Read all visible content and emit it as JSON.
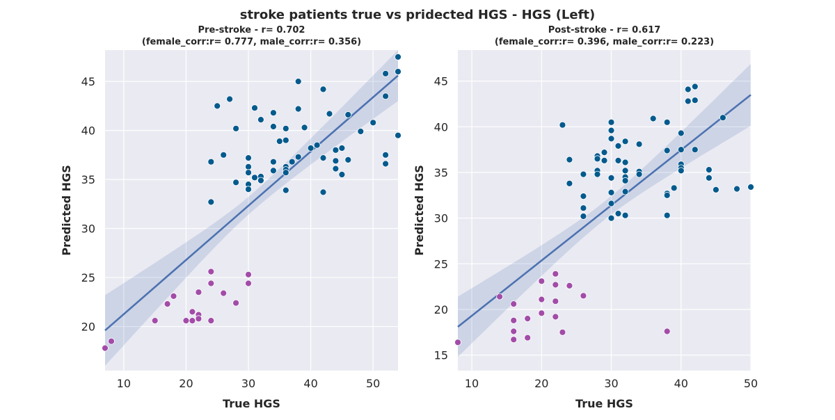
{
  "figure": {
    "suptitle": "stroke patients true vs pridected HGS - HGS (Left)"
  },
  "colors": {
    "background": "#eaeaf2",
    "grid": "#ffffff",
    "male": "#045a8d",
    "female": "#a24ca8",
    "regression_line": "#4c72b0",
    "ci_band": "#4c72b0"
  },
  "chart_data": [
    {
      "type": "scatter",
      "title_line1": "Pre-stroke - r= 0.702",
      "title_line2": "(female_corr:r= 0.777, male_corr:r= 0.356)",
      "xlabel": "True HGS",
      "ylabel": "Predicted HGS",
      "xlim": [
        7,
        54
      ],
      "ylim": [
        15.5,
        48.2
      ],
      "xticks": [
        10,
        20,
        30,
        40,
        50
      ],
      "yticks": [
        20,
        25,
        30,
        35,
        40,
        45
      ],
      "grid": true,
      "regression": {
        "x": [
          7,
          54
        ],
        "y": [
          19.6,
          45.6
        ],
        "ci_half_width_ends": [
          3.6,
          2.6
        ],
        "ci_half_width_center": 0.9
      },
      "series": [
        {
          "group": "male",
          "points": [
            [
              24,
              32.7
            ],
            [
              24,
              36.8
            ],
            [
              25,
              42.5
            ],
            [
              26,
              37.5
            ],
            [
              27,
              43.2
            ],
            [
              28,
              40.2
            ],
            [
              28,
              34.7
            ],
            [
              30,
              37.2
            ],
            [
              30,
              36.3
            ],
            [
              30,
              35.7
            ],
            [
              30,
              34.5
            ],
            [
              30,
              34.0
            ],
            [
              31,
              42.3
            ],
            [
              31,
              35.2
            ],
            [
              32,
              41.1
            ],
            [
              32,
              35.3
            ],
            [
              32,
              34.9
            ],
            [
              34,
              41.8
            ],
            [
              34,
              40.4
            ],
            [
              34,
              36.8
            ],
            [
              34,
              35.9
            ],
            [
              35,
              38.9
            ],
            [
              36,
              40.2
            ],
            [
              36,
              39.0
            ],
            [
              36,
              36.3
            ],
            [
              36,
              36.0
            ],
            [
              36,
              35.7
            ],
            [
              36,
              33.9
            ],
            [
              37,
              36.8
            ],
            [
              38,
              45.0
            ],
            [
              38,
              42.2
            ],
            [
              38,
              37.3
            ],
            [
              39,
              40.3
            ],
            [
              40,
              38.2
            ],
            [
              41,
              38.5
            ],
            [
              42,
              44.2
            ],
            [
              42,
              37.2
            ],
            [
              42,
              33.7
            ],
            [
              43,
              41.7
            ],
            [
              44,
              38.0
            ],
            [
              44,
              36.9
            ],
            [
              44,
              36.1
            ],
            [
              45,
              38.2
            ],
            [
              45,
              35.5
            ],
            [
              46,
              41.6
            ],
            [
              46,
              37.0
            ],
            [
              48,
              39.9
            ],
            [
              50,
              40.8
            ],
            [
              52,
              45.8
            ],
            [
              52,
              43.5
            ],
            [
              52,
              37.5
            ],
            [
              52,
              36.6
            ],
            [
              54,
              47.5
            ],
            [
              54,
              46.0
            ],
            [
              54,
              39.5
            ]
          ]
        },
        {
          "group": "female",
          "points": [
            [
              7,
              17.8
            ],
            [
              8,
              18.5
            ],
            [
              15,
              20.6
            ],
            [
              17,
              22.3
            ],
            [
              18,
              23.1
            ],
            [
              20,
              20.6
            ],
            [
              21,
              21.5
            ],
            [
              21,
              20.6
            ],
            [
              22,
              23.5
            ],
            [
              22,
              21.2
            ],
            [
              22,
              20.8
            ],
            [
              24,
              25.6
            ],
            [
              24,
              24.4
            ],
            [
              24,
              20.6
            ],
            [
              26,
              23.4
            ],
            [
              28,
              22.4
            ],
            [
              30,
              25.3
            ],
            [
              30,
              24.4
            ]
          ]
        }
      ]
    },
    {
      "type": "scatter",
      "title_line1": "Post-stroke - r= 0.617",
      "title_line2": "(female_corr:r= 0.396, male_corr:r= 0.223)",
      "xlabel": "True HGS",
      "ylabel": "Predicted HGS",
      "xlim": [
        8,
        50
      ],
      "ylim": [
        13.3,
        48.4
      ],
      "xticks": [
        10,
        20,
        30,
        40,
        50
      ],
      "yticks": [
        15,
        20,
        25,
        30,
        35,
        40,
        45
      ],
      "grid": true,
      "regression": {
        "x": [
          8,
          50
        ],
        "y": [
          18.1,
          43.5
        ],
        "ci_half_width_ends": [
          3.3,
          3.4
        ],
        "ci_half_width_center": 1.0
      },
      "series": [
        {
          "group": "male",
          "points": [
            [
              23,
              40.2
            ],
            [
              24,
              36.4
            ],
            [
              24,
              33.8
            ],
            [
              26,
              34.8
            ],
            [
              26,
              32.4
            ],
            [
              26,
              31.1
            ],
            [
              26,
              30.2
            ],
            [
              28,
              36.8
            ],
            [
              28,
              36.5
            ],
            [
              28,
              35.2
            ],
            [
              28,
              34.8
            ],
            [
              29,
              37.2
            ],
            [
              29,
              36.3
            ],
            [
              30,
              40.5
            ],
            [
              30,
              39.6
            ],
            [
              30,
              38.7
            ],
            [
              30,
              34.4
            ],
            [
              30,
              32.8
            ],
            [
              30,
              31.6
            ],
            [
              30,
              30.0
            ],
            [
              31,
              37.9
            ],
            [
              31,
              36.3
            ],
            [
              31,
              30.5
            ],
            [
              32,
              38.4
            ],
            [
              32,
              36.1
            ],
            [
              32,
              35.2
            ],
            [
              32,
              34.5
            ],
            [
              32,
              34.1
            ],
            [
              32,
              32.9
            ],
            [
              32,
              30.3
            ],
            [
              34,
              38.1
            ],
            [
              34,
              35.1
            ],
            [
              34,
              34.8
            ],
            [
              36,
              40.9
            ],
            [
              38,
              40.5
            ],
            [
              38,
              37.4
            ],
            [
              38,
              32.7
            ],
            [
              38,
              32.5
            ],
            [
              38,
              30.3
            ],
            [
              39,
              33.3
            ],
            [
              40,
              39.3
            ],
            [
              40,
              37.5
            ],
            [
              40,
              35.9
            ],
            [
              40,
              35.5
            ],
            [
              40,
              35.2
            ],
            [
              41,
              44.1
            ],
            [
              41,
              42.8
            ],
            [
              42,
              44.4
            ],
            [
              42,
              42.9
            ],
            [
              42,
              37.5
            ],
            [
              44,
              35.3
            ],
            [
              44,
              34.4
            ],
            [
              45,
              33.1
            ],
            [
              46,
              41.0
            ],
            [
              48,
              33.2
            ],
            [
              50,
              33.4
            ]
          ]
        },
        {
          "group": "female",
          "points": [
            [
              8,
              16.4
            ],
            [
              14,
              21.4
            ],
            [
              16,
              20.6
            ],
            [
              16,
              18.8
            ],
            [
              16,
              17.6
            ],
            [
              16,
              16.7
            ],
            [
              18,
              19.0
            ],
            [
              18,
              16.9
            ],
            [
              20,
              23.1
            ],
            [
              20,
              21.1
            ],
            [
              20,
              19.6
            ],
            [
              22,
              23.9
            ],
            [
              22,
              22.7
            ],
            [
              22,
              20.9
            ],
            [
              22,
              19.2
            ],
            [
              23,
              17.5
            ],
            [
              24,
              22.6
            ],
            [
              26,
              21.5
            ],
            [
              38,
              17.6
            ]
          ]
        }
      ]
    }
  ]
}
